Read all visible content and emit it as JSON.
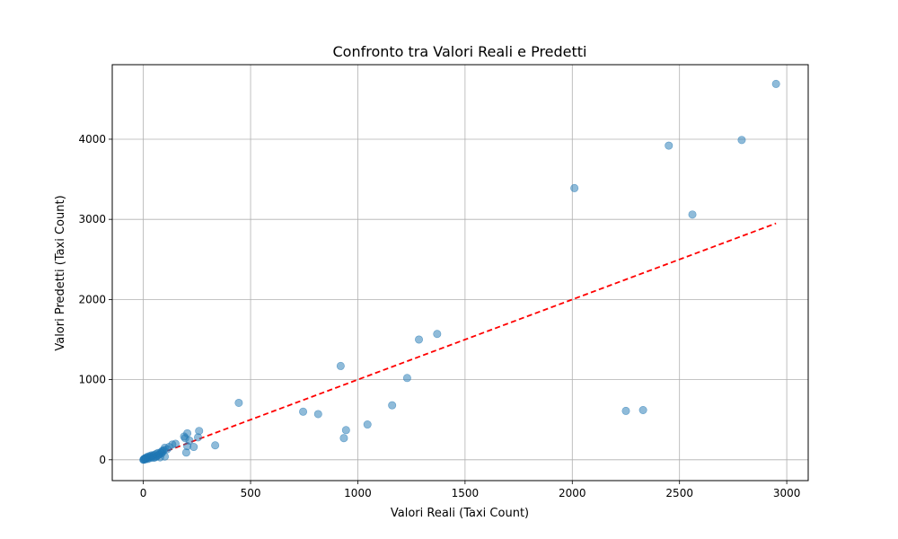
{
  "chart_data": {
    "type": "scatter",
    "title": "Confronto tra Valori Reali e Predetti",
    "xlabel": "Valori Reali (Taxi Count)",
    "ylabel": "Valori Predetti (Taxi Count)",
    "xlim": [
      -145,
      3100
    ],
    "ylim": [
      -260,
      4930
    ],
    "xticks": [
      0,
      500,
      1000,
      1500,
      2000,
      2500,
      3000
    ],
    "yticks": [
      0,
      1000,
      2000,
      3000,
      4000
    ],
    "grid": true,
    "colors": {
      "points": "#1f77b4",
      "reference_line": "#ff0000"
    },
    "reference_line": {
      "style": "dashed",
      "x": [
        0,
        2950
      ],
      "y": [
        0,
        2950
      ]
    },
    "points": [
      {
        "x": 2950,
        "y": 4690
      },
      {
        "x": 2790,
        "y": 3990
      },
      {
        "x": 2450,
        "y": 3920
      },
      {
        "x": 2560,
        "y": 3060
      },
      {
        "x": 2010,
        "y": 3390
      },
      {
        "x": 2330,
        "y": 620
      },
      {
        "x": 2250,
        "y": 610
      },
      {
        "x": 1370,
        "y": 1570
      },
      {
        "x": 1285,
        "y": 1500
      },
      {
        "x": 1230,
        "y": 1020
      },
      {
        "x": 1160,
        "y": 680
      },
      {
        "x": 1045,
        "y": 440
      },
      {
        "x": 920,
        "y": 1170
      },
      {
        "x": 945,
        "y": 370
      },
      {
        "x": 935,
        "y": 270
      },
      {
        "x": 815,
        "y": 570
      },
      {
        "x": 745,
        "y": 600
      },
      {
        "x": 445,
        "y": 710
      },
      {
        "x": 335,
        "y": 180
      },
      {
        "x": 260,
        "y": 360
      },
      {
        "x": 255,
        "y": 280
      },
      {
        "x": 235,
        "y": 160
      },
      {
        "x": 205,
        "y": 330
      },
      {
        "x": 195,
        "y": 270
      },
      {
        "x": 200,
        "y": 90
      },
      {
        "x": 205,
        "y": 170
      },
      {
        "x": 190,
        "y": 290
      },
      {
        "x": 215,
        "y": 240
      },
      {
        "x": 150,
        "y": 200
      },
      {
        "x": 135,
        "y": 190
      },
      {
        "x": 100,
        "y": 150
      },
      {
        "x": 95,
        "y": 120
      },
      {
        "x": 90,
        "y": 100
      },
      {
        "x": 100,
        "y": 40
      },
      {
        "x": 85,
        "y": 80
      },
      {
        "x": 80,
        "y": 90
      },
      {
        "x": 75,
        "y": 70
      },
      {
        "x": 70,
        "y": 60
      },
      {
        "x": 65,
        "y": 50
      },
      {
        "x": 60,
        "y": 40
      },
      {
        "x": 55,
        "y": 30
      },
      {
        "x": 50,
        "y": 60
      },
      {
        "x": 45,
        "y": 50
      },
      {
        "x": 40,
        "y": 30
      },
      {
        "x": 35,
        "y": 40
      },
      {
        "x": 30,
        "y": 20
      },
      {
        "x": 25,
        "y": 30
      },
      {
        "x": 20,
        "y": 10
      },
      {
        "x": 15,
        "y": 20
      },
      {
        "x": 10,
        "y": 10
      },
      {
        "x": 8,
        "y": 5
      },
      {
        "x": 5,
        "y": 15
      },
      {
        "x": 3,
        "y": 5
      },
      {
        "x": 0,
        "y": 0
      },
      {
        "x": 2,
        "y": 2
      },
      {
        "x": 12,
        "y": 25
      },
      {
        "x": 18,
        "y": 35
      },
      {
        "x": 28,
        "y": 45
      },
      {
        "x": 38,
        "y": 55
      },
      {
        "x": 48,
        "y": 25
      },
      {
        "x": 58,
        "y": 70
      },
      {
        "x": 68,
        "y": 85
      },
      {
        "x": 78,
        "y": 30
      },
      {
        "x": 88,
        "y": 110
      },
      {
        "x": 110,
        "y": 130
      },
      {
        "x": 120,
        "y": 160
      }
    ]
  }
}
